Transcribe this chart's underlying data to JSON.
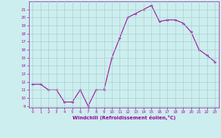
{
  "x": [
    0,
    1,
    2,
    3,
    4,
    5,
    6,
    7,
    8,
    9,
    10,
    11,
    12,
    13,
    14,
    15,
    16,
    17,
    18,
    19,
    20,
    21,
    22,
    23
  ],
  "y": [
    11.7,
    11.7,
    11.0,
    11.0,
    9.5,
    9.5,
    11.0,
    9.0,
    11.0,
    11.0,
    15.0,
    17.5,
    20.0,
    20.5,
    21.0,
    21.5,
    19.5,
    19.7,
    19.7,
    19.3,
    18.2,
    16.0,
    15.3,
    14.5
  ],
  "line_color": "#990099",
  "marker": "D",
  "marker_size": 1.5,
  "background_color": "#cceeee",
  "grid_color": "#aacccc",
  "xlabel": "Windchill (Refroidissement éolien,°C)",
  "xlabel_color": "#990099",
  "tick_color": "#990099",
  "ylim": [
    8.8,
    22.0
  ],
  "xlim": [
    -0.5,
    23.5
  ],
  "yticks": [
    9,
    10,
    11,
    12,
    13,
    14,
    15,
    16,
    17,
    18,
    19,
    20,
    21
  ],
  "xticks": [
    0,
    1,
    2,
    3,
    4,
    5,
    6,
    7,
    8,
    9,
    10,
    11,
    12,
    13,
    14,
    15,
    16,
    17,
    18,
    19,
    20,
    21,
    22,
    23
  ]
}
